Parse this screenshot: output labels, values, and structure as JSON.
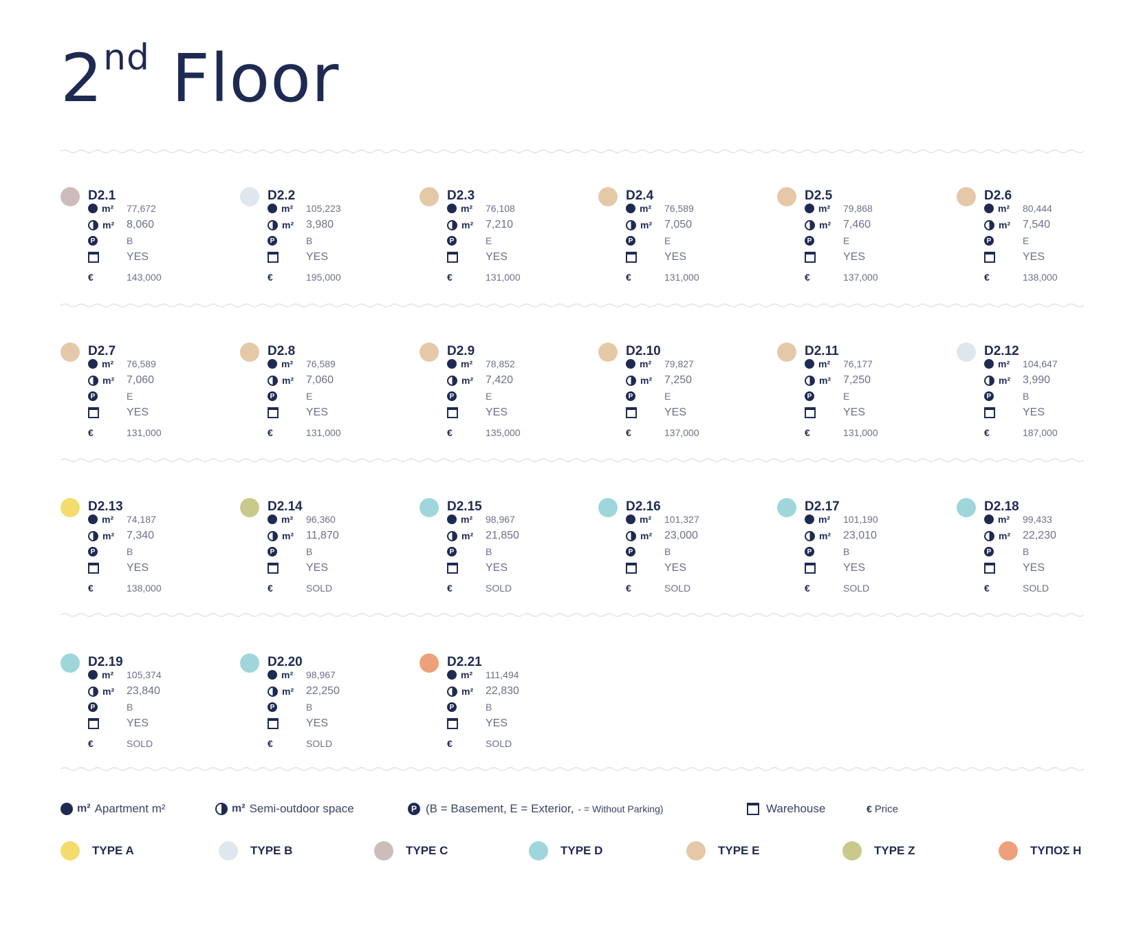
{
  "title": {
    "main": "2",
    "sup": "nd",
    "rest": " Floor"
  },
  "colors": {
    "navy": "#1f2a52",
    "typeA": "#f3dc6c",
    "typeB": "#dfe6ee",
    "typeC": "#cdbcbc",
    "typeD": "#9fd6dc",
    "typeE": "#e4c8a8",
    "typeZ": "#c9c98c",
    "typeH": "#eea07a"
  },
  "labels": {
    "m2": "m²"
  },
  "units": [
    {
      "code": "D2.1",
      "type": "C",
      "apt": "77,672",
      "semi": "8,060",
      "parking": "B",
      "warehouse": "YES",
      "price": "143,000"
    },
    {
      "code": "D2.2",
      "type": "B",
      "apt": "105,223",
      "semi": "3,980",
      "parking": "B",
      "warehouse": "YES",
      "price": "195,000"
    },
    {
      "code": "D2.3",
      "type": "E",
      "apt": "76,108",
      "semi": "7,210",
      "parking": "E",
      "warehouse": "YES",
      "price": "131,000"
    },
    {
      "code": "D2.4",
      "type": "E",
      "apt": "76,589",
      "semi": "7,050",
      "parking": "E",
      "warehouse": "YES",
      "price": "131,000"
    },
    {
      "code": "D2.5",
      "type": "E",
      "apt": "79,868",
      "semi": "7,460",
      "parking": "E",
      "warehouse": "YES",
      "price": "137,000"
    },
    {
      "code": "D2.6",
      "type": "E",
      "apt": "80,444",
      "semi": "7,540",
      "parking": "E",
      "warehouse": "YES",
      "price": "138,000"
    },
    {
      "code": "D2.7",
      "type": "E",
      "apt": "76,589",
      "semi": "7,060",
      "parking": "E",
      "warehouse": "YES",
      "price": "131,000"
    },
    {
      "code": "D2.8",
      "type": "E",
      "apt": "76,589",
      "semi": "7,060",
      "parking": "E",
      "warehouse": "YES",
      "price": "131,000"
    },
    {
      "code": "D2.9",
      "type": "E",
      "apt": "78,852",
      "semi": "7,420",
      "parking": "E",
      "warehouse": "YES",
      "price": "135,000"
    },
    {
      "code": "D2.10",
      "type": "E",
      "apt": "79,827",
      "semi": "7,250",
      "parking": "E",
      "warehouse": "YES",
      "price": "137,000"
    },
    {
      "code": "D2.11",
      "type": "E",
      "apt": "76,177",
      "semi": "7,250",
      "parking": "E",
      "warehouse": "YES",
      "price": "131,000"
    },
    {
      "code": "D2.12",
      "type": "B",
      "apt": "104,647",
      "semi": "3,990",
      "parking": "B",
      "warehouse": "YES",
      "price": "187,000"
    },
    {
      "code": "D2.13",
      "type": "A",
      "apt": "74,187",
      "semi": "7,340",
      "parking": "B",
      "warehouse": "YES",
      "price": "138,000"
    },
    {
      "code": "D2.14",
      "type": "Z",
      "apt": "96,360",
      "semi": "11,870",
      "parking": "B",
      "warehouse": "YES",
      "price": "SOLD"
    },
    {
      "code": "D2.15",
      "type": "D",
      "apt": "98,967",
      "semi": "21,850",
      "parking": "B",
      "warehouse": "YES",
      "price": "SOLD"
    },
    {
      "code": "D2.16",
      "type": "D",
      "apt": "101,327",
      "semi": "23,000",
      "parking": "B",
      "warehouse": "YES",
      "price": "SOLD"
    },
    {
      "code": "D2.17",
      "type": "D",
      "apt": "101,190",
      "semi": "23,010",
      "parking": "B",
      "warehouse": "YES",
      "price": "SOLD"
    },
    {
      "code": "D2.18",
      "type": "D",
      "apt": "99,433",
      "semi": "22,230",
      "parking": "B",
      "warehouse": "YES",
      "price": "SOLD"
    },
    {
      "code": "D2.19",
      "type": "D",
      "apt": "105,374",
      "semi": "23,840",
      "parking": "B",
      "warehouse": "YES",
      "price": "SOLD"
    },
    {
      "code": "D2.20",
      "type": "D",
      "apt": "98,967",
      "semi": "22,250",
      "parking": "B",
      "warehouse": "YES",
      "price": "SOLD"
    },
    {
      "code": "D2.21",
      "type": "H",
      "apt": "111,494",
      "semi": "22,830",
      "parking": "B",
      "warehouse": "YES",
      "price": "SOLD"
    }
  ],
  "legend": {
    "apartment": "Apartment m²",
    "semi": "Semi-outdoor space",
    "parking_main": "(B = Basement, E = Exterior,",
    "parking_small": "- = Without Parking)",
    "warehouse": "Warehouse",
    "price": "Price",
    "euro": "€",
    "park_glyph": "P"
  },
  "types": [
    {
      "key": "A",
      "label": "TYPE A"
    },
    {
      "key": "B",
      "label": "TYPE B"
    },
    {
      "key": "C",
      "label": "TYPE C"
    },
    {
      "key": "D",
      "label": "TYPE D"
    },
    {
      "key": "E",
      "label": "TYPE E"
    },
    {
      "key": "Z",
      "label": "TYPE Z"
    },
    {
      "key": "H",
      "label": "ΤΥΠΟΣ Η"
    }
  ]
}
